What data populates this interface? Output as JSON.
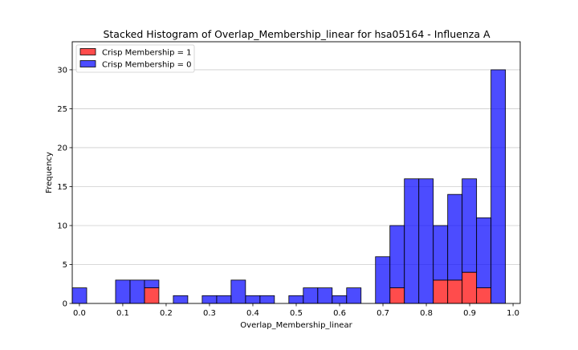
{
  "chart_data": {
    "type": "bar",
    "stacked": true,
    "title": "Stacked Histogram of Overlap_Membership_linear for hsa05164 - Influenza A",
    "xlabel": "Overlap_Membership_linear",
    "ylabel": "Frequency",
    "xlim": [
      -0.0165,
      1.0165
    ],
    "ylim": [
      0,
      33.6
    ],
    "bin_width": 0.0333,
    "x_ticks": [
      0.0,
      0.1,
      0.2,
      0.3,
      0.4,
      0.5,
      0.6,
      0.7,
      0.8,
      0.9,
      1.0
    ],
    "x_tick_labels": [
      "0.0",
      "0.1",
      "0.2",
      "0.3",
      "0.4",
      "0.5",
      "0.6",
      "0.7",
      "0.8",
      "0.9",
      "1.0"
    ],
    "y_ticks": [
      0,
      5,
      10,
      15,
      20,
      25,
      30
    ],
    "y_tick_labels": [
      "0",
      "5",
      "10",
      "15",
      "20",
      "25",
      "30"
    ],
    "grid": "horizontal",
    "legend_position": "top-left",
    "bin_left_edges": [
      -0.0165,
      0.0168,
      0.0501,
      0.0834,
      0.1167,
      0.15,
      0.1833,
      0.2166,
      0.2499,
      0.2832,
      0.3165,
      0.3498,
      0.3831,
      0.4164,
      0.4497,
      0.483,
      0.5163,
      0.5496,
      0.5829,
      0.6162,
      0.6495,
      0.6828,
      0.7161,
      0.7494,
      0.7827,
      0.816,
      0.8493,
      0.8826,
      0.9159,
      0.9492
    ],
    "series": [
      {
        "name": "Crisp Membership = 1",
        "color": "#ff0000",
        "values": [
          0,
          0,
          0,
          0,
          0,
          2,
          0,
          0,
          0,
          0,
          0,
          0,
          0,
          0,
          0,
          0,
          0,
          0,
          0,
          0,
          0,
          0,
          2,
          0,
          0,
          3,
          3,
          4,
          2,
          0
        ]
      },
      {
        "name": "Crisp Membership = 0",
        "color": "#0000ff",
        "values": [
          2,
          0,
          0,
          3,
          3,
          1,
          0,
          1,
          0,
          1,
          1,
          3,
          1,
          1,
          0,
          1,
          2,
          2,
          1,
          2,
          0,
          6,
          8,
          16,
          16,
          7,
          11,
          12,
          9,
          30
        ]
      }
    ]
  }
}
